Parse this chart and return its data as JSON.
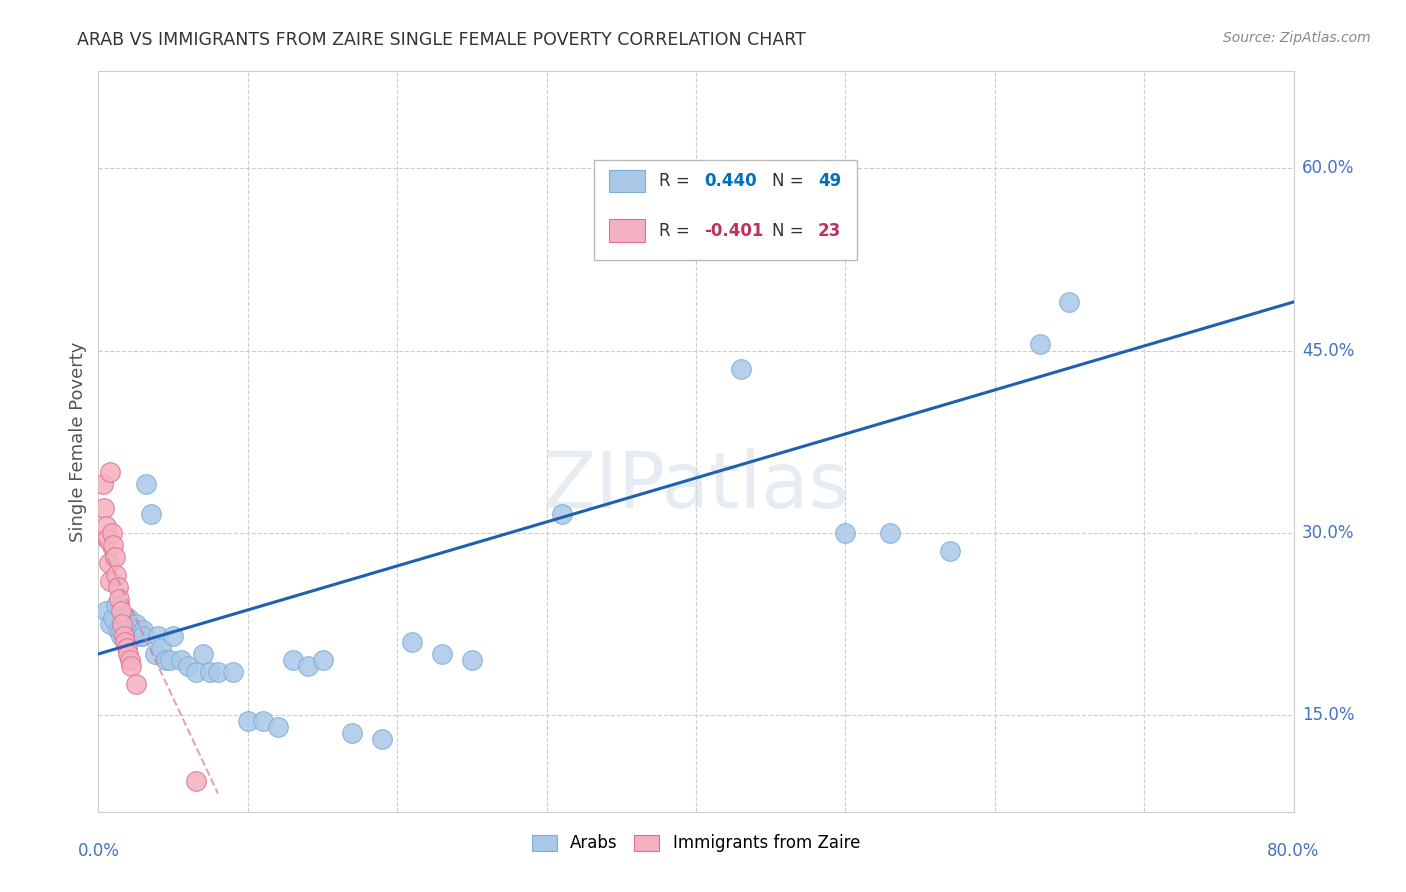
{
  "title": "ARAB VS IMMIGRANTS FROM ZAIRE SINGLE FEMALE POVERTY CORRELATION CHART",
  "source": "Source: ZipAtlas.com",
  "ylabel": "Single Female Poverty",
  "ytick_labels": [
    "15.0%",
    "30.0%",
    "45.0%",
    "60.0%"
  ],
  "ytick_values": [
    0.15,
    0.3,
    0.45,
    0.6
  ],
  "xlim": [
    0.0,
    0.8
  ],
  "ylim": [
    0.07,
    0.68
  ],
  "watermark": "ZIPatlas",
  "arab_R": 0.44,
  "arab_N": 49,
  "zaire_R": -0.401,
  "zaire_N": 23,
  "arab_scatter_x": [
    0.005,
    0.008,
    0.01,
    0.012,
    0.013,
    0.015,
    0.015,
    0.018,
    0.02,
    0.02,
    0.022,
    0.025,
    0.025,
    0.027,
    0.03,
    0.03,
    0.032,
    0.035,
    0.038,
    0.04,
    0.042,
    0.045,
    0.048,
    0.05,
    0.055,
    0.06,
    0.065,
    0.07,
    0.075,
    0.08,
    0.09,
    0.1,
    0.11,
    0.12,
    0.13,
    0.14,
    0.15,
    0.17,
    0.19,
    0.21,
    0.23,
    0.25,
    0.31,
    0.43,
    0.5,
    0.53,
    0.57,
    0.63,
    0.65
  ],
  "arab_scatter_y": [
    0.235,
    0.225,
    0.23,
    0.24,
    0.22,
    0.215,
    0.22,
    0.22,
    0.225,
    0.23,
    0.215,
    0.22,
    0.225,
    0.215,
    0.22,
    0.215,
    0.34,
    0.315,
    0.2,
    0.215,
    0.205,
    0.195,
    0.195,
    0.215,
    0.195,
    0.19,
    0.185,
    0.2,
    0.185,
    0.185,
    0.185,
    0.145,
    0.145,
    0.14,
    0.195,
    0.19,
    0.195,
    0.135,
    0.13,
    0.21,
    0.2,
    0.195,
    0.315,
    0.435,
    0.3,
    0.3,
    0.285,
    0.455,
    0.49
  ],
  "zaire_scatter_x": [
    0.003,
    0.004,
    0.005,
    0.006,
    0.007,
    0.008,
    0.008,
    0.009,
    0.01,
    0.011,
    0.012,
    0.013,
    0.014,
    0.015,
    0.016,
    0.017,
    0.018,
    0.019,
    0.02,
    0.021,
    0.022,
    0.025,
    0.065
  ],
  "zaire_scatter_y": [
    0.34,
    0.32,
    0.305,
    0.295,
    0.275,
    0.26,
    0.35,
    0.3,
    0.29,
    0.28,
    0.265,
    0.255,
    0.245,
    0.235,
    0.225,
    0.215,
    0.21,
    0.205,
    0.2,
    0.195,
    0.19,
    0.175,
    0.095
  ],
  "arab_line_x": [
    0.0,
    0.8
  ],
  "arab_line_y": [
    0.2,
    0.49
  ],
  "zaire_line_x": [
    0.0,
    0.08
  ],
  "zaire_line_y": [
    0.295,
    0.085
  ],
  "arab_color": "#aac8e8",
  "arab_edge_color": "#7aaed6",
  "zaire_color": "#f4b0c0",
  "zaire_edge_color": "#e07090",
  "arab_line_color": "#2060b0",
  "zaire_line_color": "#d08090",
  "legend_R_arab_color": "#0070c0",
  "legend_R_zaire_color": "#c03060",
  "background_color": "#ffffff",
  "grid_color": "#cccccc",
  "title_color": "#333333",
  "axis_color": "#4472c4",
  "ylabel_color": "#555555"
}
